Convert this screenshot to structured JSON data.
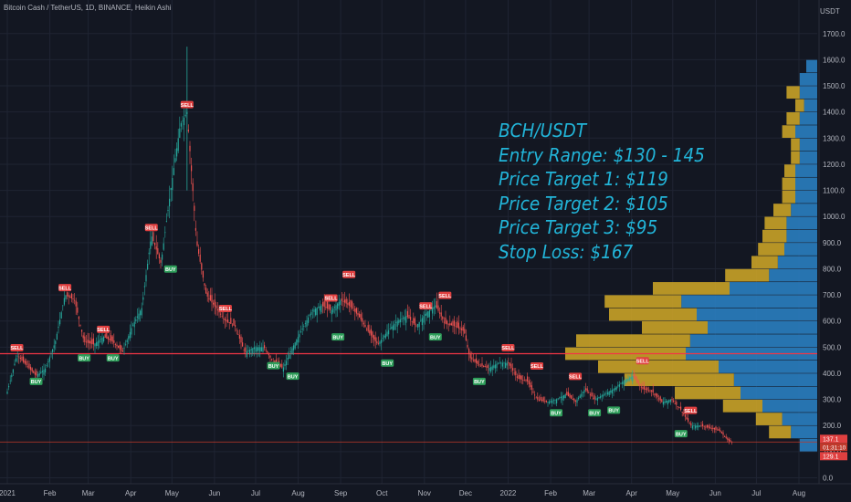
{
  "header": {
    "symbol_info": "Bitcoin Cash / TetherUS, 1D, BINANCE, Heikin Ashi"
  },
  "axis": {
    "currency": "USDT"
  },
  "annotation": {
    "lines": [
      "BCH/USDT",
      "Entry Range: $130 - 145",
      "Price Target 1: $119",
      "Price Target 2: $105",
      "Price Target 3: $95",
      "Stop Loss: $167"
    ]
  },
  "price_badges": {
    "last": "137.1",
    "countdown": "01:31:10",
    "low": "129.1"
  },
  "colors": {
    "bg": "#131722",
    "up": "#26a69a",
    "down": "#ef5350",
    "annotation": "#22b5d9",
    "vp_up": "#2a7ec0",
    "vp_down": "#c9a227",
    "hline": "#f23645"
  },
  "chart_data": {
    "type": "candlestick",
    "ylim": [
      0,
      1800
    ],
    "y_ticks": [
      0,
      100,
      200,
      300,
      400,
      500,
      600,
      700,
      800,
      900,
      1000,
      1100,
      1200,
      1300,
      1400,
      1500,
      1600,
      1700
    ],
    "y_tick_labels": [
      "0.0",
      "100.0",
      "200.0",
      "300.0",
      "400.0",
      "500.0",
      "600.0",
      "700.0",
      "800.0",
      "900.0",
      "1000.0",
      "1100.0",
      "1200.0",
      "1300.0",
      "1400.0",
      "1500.0",
      "1600.0",
      "1700.0"
    ],
    "x_tick_labels": [
      "2021",
      "Feb",
      "Mar",
      "Apr",
      "May",
      "Jun",
      "Jul",
      "Aug",
      "Sep",
      "Oct",
      "Nov",
      "Dec",
      "2022",
      "Feb",
      "Mar",
      "Apr",
      "May",
      "Jun",
      "Jul",
      "Aug"
    ],
    "horizontal_lines": [
      475,
      137
    ],
    "price_path": [
      [
        "2021-01-01",
        330
      ],
      [
        "2021-01-08",
        470
      ],
      [
        "2021-01-15",
        430
      ],
      [
        "2021-01-22",
        390
      ],
      [
        "2021-01-29",
        420
      ],
      [
        "2021-02-05",
        520
      ],
      [
        "2021-02-12",
        700
      ],
      [
        "2021-02-19",
        680
      ],
      [
        "2021-02-26",
        520
      ],
      [
        "2021-03-05",
        510
      ],
      [
        "2021-03-12",
        540
      ],
      [
        "2021-03-19",
        520
      ],
      [
        "2021-03-26",
        480
      ],
      [
        "2021-04-02",
        580
      ],
      [
        "2021-04-09",
        650
      ],
      [
        "2021-04-16",
        930
      ],
      [
        "2021-04-23",
        820
      ],
      [
        "2021-04-30",
        1100
      ],
      [
        "2021-05-07",
        1350
      ],
      [
        "2021-05-12",
        1400
      ],
      [
        "2021-05-19",
        900
      ],
      [
        "2021-05-26",
        700
      ],
      [
        "2021-06-02",
        650
      ],
      [
        "2021-06-09",
        600
      ],
      [
        "2021-06-16",
        580
      ],
      [
        "2021-06-23",
        480
      ],
      [
        "2021-06-30",
        500
      ],
      [
        "2021-07-07",
        500
      ],
      [
        "2021-07-14",
        440
      ],
      [
        "2021-07-21",
        420
      ],
      [
        "2021-07-28",
        500
      ],
      [
        "2021-08-04",
        570
      ],
      [
        "2021-08-11",
        640
      ],
      [
        "2021-08-18",
        660
      ],
      [
        "2021-08-25",
        640
      ],
      [
        "2021-09-01",
        680
      ],
      [
        "2021-09-07",
        660
      ],
      [
        "2021-09-14",
        620
      ],
      [
        "2021-09-21",
        560
      ],
      [
        "2021-09-28",
        510
      ],
      [
        "2021-10-05",
        560
      ],
      [
        "2021-10-12",
        600
      ],
      [
        "2021-10-19",
        620
      ],
      [
        "2021-10-26",
        580
      ],
      [
        "2021-11-02",
        630
      ],
      [
        "2021-11-09",
        660
      ],
      [
        "2021-11-16",
        590
      ],
      [
        "2021-11-23",
        580
      ],
      [
        "2021-11-30",
        560
      ],
      [
        "2021-12-04",
        460
      ],
      [
        "2021-12-11",
        430
      ],
      [
        "2021-12-18",
        420
      ],
      [
        "2021-12-25",
        440
      ],
      [
        "2022-01-01",
        440
      ],
      [
        "2022-01-08",
        380
      ],
      [
        "2022-01-15",
        370
      ],
      [
        "2022-01-22",
        300
      ],
      [
        "2022-01-29",
        290
      ],
      [
        "2022-02-05",
        300
      ],
      [
        "2022-02-12",
        320
      ],
      [
        "2022-02-19",
        290
      ],
      [
        "2022-02-26",
        340
      ],
      [
        "2022-03-05",
        300
      ],
      [
        "2022-03-12",
        320
      ],
      [
        "2022-03-19",
        340
      ],
      [
        "2022-03-26",
        370
      ],
      [
        "2022-04-02",
        390
      ],
      [
        "2022-04-09",
        340
      ],
      [
        "2022-04-16",
        330
      ],
      [
        "2022-04-23",
        290
      ],
      [
        "2022-04-30",
        300
      ],
      [
        "2022-05-07",
        260
      ],
      [
        "2022-05-14",
        200
      ],
      [
        "2022-05-21",
        200
      ],
      [
        "2022-05-28",
        190
      ],
      [
        "2022-06-04",
        180
      ],
      [
        "2022-06-11",
        140
      ],
      [
        "2022-06-14",
        137
      ]
    ],
    "signals": [
      {
        "label": "SELL",
        "date": "2021-01-08",
        "price": 470
      },
      {
        "label": "BUY",
        "date": "2021-01-22",
        "price": 390
      },
      {
        "label": "SELL",
        "date": "2021-02-12",
        "price": 700
      },
      {
        "label": "BUY",
        "date": "2021-02-26",
        "price": 480
      },
      {
        "label": "SELL",
        "date": "2021-03-12",
        "price": 540
      },
      {
        "label": "BUY",
        "date": "2021-03-19",
        "price": 480
      },
      {
        "label": "SELL",
        "date": "2021-04-16",
        "price": 930
      },
      {
        "label": "BUY",
        "date": "2021-04-30",
        "price": 820
      },
      {
        "label": "SELL",
        "date": "2021-05-12",
        "price": 1400
      },
      {
        "label": "SELL",
        "date": "2021-06-09",
        "price": 620
      },
      {
        "label": "BUY",
        "date": "2021-07-14",
        "price": 450
      },
      {
        "label": "BUY",
        "date": "2021-07-28",
        "price": 410
      },
      {
        "label": "SELL",
        "date": "2021-08-25",
        "price": 660
      },
      {
        "label": "BUY",
        "date": "2021-08-30",
        "price": 560
      },
      {
        "label": "SELL",
        "date": "2021-09-07",
        "price": 750
      },
      {
        "label": "BUY",
        "date": "2021-10-05",
        "price": 460
      },
      {
        "label": "SELL",
        "date": "2021-11-02",
        "price": 630
      },
      {
        "label": "BUY",
        "date": "2021-11-09",
        "price": 560
      },
      {
        "label": "SELL",
        "date": "2021-11-16",
        "price": 670
      },
      {
        "label": "BUY",
        "date": "2021-12-11",
        "price": 390
      },
      {
        "label": "SELL",
        "date": "2022-01-01",
        "price": 470
      },
      {
        "label": "SELL",
        "date": "2022-01-22",
        "price": 400
      },
      {
        "label": "BUY",
        "date": "2022-02-05",
        "price": 270
      },
      {
        "label": "SELL",
        "date": "2022-02-19",
        "price": 360
      },
      {
        "label": "BUY",
        "date": "2022-03-05",
        "price": 270
      },
      {
        "label": "BUY",
        "date": "2022-03-19",
        "price": 280
      },
      {
        "label": "SELL",
        "date": "2022-04-09",
        "price": 420
      },
      {
        "label": "BUY",
        "date": "2022-05-07",
        "price": 190
      },
      {
        "label": "SELL",
        "date": "2022-05-14",
        "price": 230
      }
    ],
    "volume_profile": [
      {
        "price": 1575,
        "up": 0.05,
        "down": 0.0
      },
      {
        "price": 1525,
        "up": 0.08,
        "down": 0.0
      },
      {
        "price": 1475,
        "up": 0.08,
        "down": 0.06
      },
      {
        "price": 1425,
        "up": 0.06,
        "down": 0.04
      },
      {
        "price": 1375,
        "up": 0.08,
        "down": 0.06
      },
      {
        "price": 1325,
        "up": 0.1,
        "down": 0.06
      },
      {
        "price": 1275,
        "up": 0.08,
        "down": 0.04
      },
      {
        "price": 1225,
        "up": 0.08,
        "down": 0.04
      },
      {
        "price": 1175,
        "up": 0.1,
        "down": 0.05
      },
      {
        "price": 1125,
        "up": 0.1,
        "down": 0.06
      },
      {
        "price": 1075,
        "up": 0.1,
        "down": 0.06
      },
      {
        "price": 1025,
        "up": 0.12,
        "down": 0.08
      },
      {
        "price": 975,
        "up": 0.14,
        "down": 0.1
      },
      {
        "price": 925,
        "up": 0.14,
        "down": 0.11
      },
      {
        "price": 875,
        "up": 0.15,
        "down": 0.12
      },
      {
        "price": 825,
        "up": 0.18,
        "down": 0.12
      },
      {
        "price": 775,
        "up": 0.22,
        "down": 0.2
      },
      {
        "price": 725,
        "up": 0.4,
        "down": 0.35
      },
      {
        "price": 675,
        "up": 0.62,
        "down": 0.35
      },
      {
        "price": 625,
        "up": 0.55,
        "down": 0.4
      },
      {
        "price": 575,
        "up": 0.5,
        "down": 0.3
      },
      {
        "price": 525,
        "up": 0.58,
        "down": 0.52
      },
      {
        "price": 475,
        "up": 0.6,
        "down": 0.55
      },
      {
        "price": 425,
        "up": 0.45,
        "down": 0.55
      },
      {
        "price": 375,
        "up": 0.38,
        "down": 0.5
      },
      {
        "price": 325,
        "up": 0.35,
        "down": 0.3
      },
      {
        "price": 275,
        "up": 0.25,
        "down": 0.18
      },
      {
        "price": 225,
        "up": 0.16,
        "down": 0.12
      },
      {
        "price": 175,
        "up": 0.12,
        "down": 0.1
      },
      {
        "price": 125,
        "up": 0.08,
        "down": 0.0
      }
    ]
  }
}
